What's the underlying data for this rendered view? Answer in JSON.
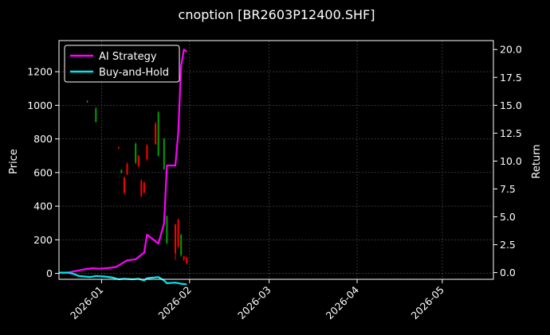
{
  "chart_data": {
    "type": "line",
    "title": "cnoption [BR2603P12400.SHF]",
    "xlabel": "",
    "ylabel_left": "Price",
    "ylabel_right": "Return",
    "x_range": [
      "2025-12-17",
      "2026-05-19"
    ],
    "x_ticks": [
      "2026-01-01",
      "2026-02-01",
      "2026-03-01",
      "2026-04-01",
      "2026-05-01"
    ],
    "x_tick_labels": [
      "2026-01",
      "2026-02",
      "2026-03",
      "2026-04",
      "2026-05"
    ],
    "y_left_range": [
      -35,
      1385
    ],
    "y_left_ticks": [
      0,
      200,
      400,
      600,
      800,
      1000,
      1200
    ],
    "y_left_tick_labels": [
      "0",
      "200",
      "400",
      "600",
      "800",
      "1000",
      "1200"
    ],
    "y_right_range": [
      -0.6,
      20.8
    ],
    "y_right_ticks": [
      0.0,
      2.5,
      5.0,
      7.5,
      10.0,
      12.5,
      15.0,
      17.5,
      20.0
    ],
    "y_right_tick_labels": [
      "0.0",
      "2.5",
      "5.0",
      "7.5",
      "10.0",
      "12.5",
      "15.0",
      "17.5",
      "20.0"
    ],
    "grid": true,
    "legend_position": "top-left",
    "legend": [
      {
        "label": "AI Strategy",
        "color": "#ff00ff"
      },
      {
        "label": "Buy-and-Hold",
        "color": "#00e5ee"
      }
    ],
    "colors": {
      "background": "#000000",
      "up_candle": "#00a000",
      "down_candle": "#ff0000",
      "grid": "#555555",
      "axis": "#ffffff"
    },
    "candles": [
      {
        "date": "2025-12-27",
        "open": 1020,
        "close": 1025,
        "high": 1030,
        "low": 1015
      },
      {
        "date": "2025-12-30",
        "open": 900,
        "close": 980,
        "high": 990,
        "low": 900
      },
      {
        "date": "2026-01-07",
        "open": 750,
        "close": 745,
        "high": 755,
        "low": 740
      },
      {
        "date": "2026-01-08",
        "open": 600,
        "close": 615,
        "high": 620,
        "low": 595
      },
      {
        "date": "2026-01-09",
        "open": 570,
        "close": 480,
        "high": 575,
        "low": 470
      },
      {
        "date": "2026-01-10",
        "open": 650,
        "close": 590,
        "high": 660,
        "low": 585
      },
      {
        "date": "2026-01-13",
        "open": 660,
        "close": 770,
        "high": 780,
        "low": 650
      },
      {
        "date": "2026-01-14",
        "open": 700,
        "close": 640,
        "high": 705,
        "low": 630
      },
      {
        "date": "2026-01-15",
        "open": 550,
        "close": 460,
        "high": 560,
        "low": 455
      },
      {
        "date": "2026-01-16",
        "open": 540,
        "close": 480,
        "high": 545,
        "low": 475
      },
      {
        "date": "2026-01-17",
        "open": 760,
        "close": 680,
        "high": 770,
        "low": 670
      },
      {
        "date": "2026-01-20",
        "open": 890,
        "close": 770,
        "high": 900,
        "low": 765
      },
      {
        "date": "2026-01-21",
        "open": 700,
        "close": 960,
        "high": 965,
        "low": 695
      },
      {
        "date": "2026-01-23",
        "open": 620,
        "close": 800,
        "high": 805,
        "low": 615
      },
      {
        "date": "2026-01-24",
        "open": 180,
        "close": 340,
        "high": 345,
        "low": 175
      },
      {
        "date": "2026-01-27",
        "open": 290,
        "close": 120,
        "high": 295,
        "low": 80
      },
      {
        "date": "2026-01-28",
        "open": 320,
        "close": 160,
        "high": 325,
        "low": 150
      },
      {
        "date": "2026-01-29",
        "open": 110,
        "close": 230,
        "high": 235,
        "low": 100
      },
      {
        "date": "2026-01-30",
        "open": 100,
        "close": 80,
        "high": 105,
        "low": 75
      },
      {
        "date": "2026-01-31",
        "open": 95,
        "close": 60,
        "high": 100,
        "low": 55
      }
    ],
    "series": [
      {
        "name": "AI Strategy",
        "axis": "right",
        "color": "#ff00ff",
        "points": [
          [
            "2025-12-17",
            0.0
          ],
          [
            "2025-12-20",
            0.0
          ],
          [
            "2025-12-22",
            0.1
          ],
          [
            "2025-12-24",
            0.2
          ],
          [
            "2025-12-26",
            0.3
          ],
          [
            "2025-12-29",
            0.4
          ],
          [
            "2025-12-31",
            0.35
          ],
          [
            "2026-01-03",
            0.4
          ],
          [
            "2026-01-06",
            0.5
          ],
          [
            "2026-01-08",
            0.8
          ],
          [
            "2026-01-10",
            1.1
          ],
          [
            "2026-01-13",
            1.2
          ],
          [
            "2026-01-15",
            1.6
          ],
          [
            "2026-01-16",
            1.8
          ],
          [
            "2026-01-17",
            3.4
          ],
          [
            "2026-01-21",
            2.6
          ],
          [
            "2026-01-23",
            4.4
          ],
          [
            "2026-01-24",
            9.6
          ],
          [
            "2026-01-27",
            9.6
          ],
          [
            "2026-01-28",
            12.5
          ],
          [
            "2026-01-29",
            18.5
          ],
          [
            "2026-01-30",
            20.0
          ],
          [
            "2026-01-31",
            19.8
          ]
        ]
      },
      {
        "name": "Buy-and-Hold",
        "axis": "right",
        "color": "#00e5ee",
        "points": [
          [
            "2025-12-17",
            0.0
          ],
          [
            "2025-12-20",
            0.0
          ],
          [
            "2025-12-22",
            -0.1
          ],
          [
            "2025-12-24",
            -0.3
          ],
          [
            "2025-12-26",
            -0.35
          ],
          [
            "2025-12-28",
            -0.4
          ],
          [
            "2025-12-30",
            -0.3
          ],
          [
            "2026-01-02",
            -0.35
          ],
          [
            "2026-01-05",
            -0.45
          ],
          [
            "2026-01-07",
            -0.6
          ],
          [
            "2026-01-09",
            -0.55
          ],
          [
            "2026-01-12",
            -0.6
          ],
          [
            "2026-01-14",
            -0.55
          ],
          [
            "2026-01-16",
            -0.7
          ],
          [
            "2026-01-17",
            -0.5
          ],
          [
            "2026-01-21",
            -0.4
          ],
          [
            "2026-01-23",
            -0.7
          ],
          [
            "2026-01-24",
            -0.95
          ],
          [
            "2026-01-27",
            -0.9
          ],
          [
            "2026-01-29",
            -1.0
          ],
          [
            "2026-01-31",
            -1.05
          ]
        ]
      }
    ]
  }
}
